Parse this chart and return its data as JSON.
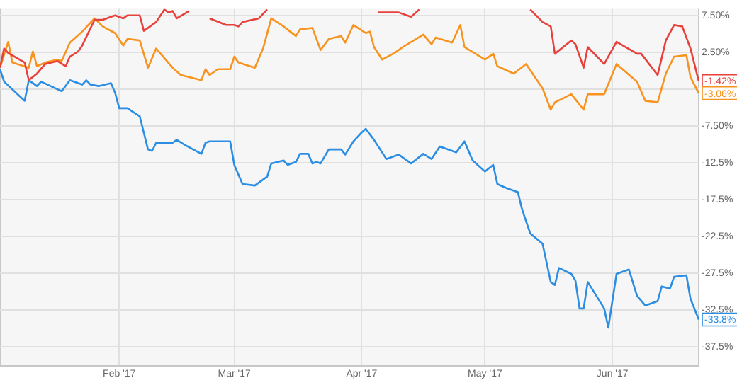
{
  "chart_data": {
    "type": "line",
    "xlim": [
      "2017-01-03",
      "2017-06-22"
    ],
    "xticks": [
      {
        "value": "2017-02-01",
        "label": "Feb '17"
      },
      {
        "value": "2017-03-01",
        "label": "Mar '17"
      },
      {
        "value": "2017-04-01",
        "label": "Apr '17"
      },
      {
        "value": "2017-05-01",
        "label": "May '17"
      },
      {
        "value": "2017-06-01",
        "label": "Jun '17"
      }
    ],
    "ylim": [
      -40,
      8.4
    ],
    "yticks": [
      {
        "value": 7.5,
        "label": "7.50%"
      },
      {
        "value": 2.5,
        "label": "2.50%"
      },
      {
        "value": -2.5,
        "label": null
      },
      {
        "value": -7.5,
        "label": "-7.50%"
      },
      {
        "value": -12.5,
        "label": "-12.5%"
      },
      {
        "value": -17.5,
        "label": "-17.5%"
      },
      {
        "value": -22.5,
        "label": "-22.5%"
      },
      {
        "value": -27.5,
        "label": "-27.5%"
      },
      {
        "value": -32.5,
        "label": "-32.5%"
      },
      {
        "value": -37.5,
        "label": "-37.5%"
      }
    ],
    "grid": true,
    "series": [
      {
        "color": "#e8413c",
        "x": [
          "2017-01-03",
          "2017-01-04",
          "2017-01-05",
          "2017-01-09",
          "2017-01-10",
          "2017-01-12",
          "2017-01-14",
          "2017-01-17",
          "2017-01-19",
          "2017-01-20",
          "2017-01-22",
          "2017-01-23",
          "2017-01-26",
          "2017-01-28",
          "2017-01-31",
          "2017-02-02",
          "2017-02-03",
          "2017-02-06",
          "2017-02-07",
          "2017-02-10",
          "2017-02-12",
          "2017-02-13",
          "2017-02-14",
          "2017-02-15",
          "2017-02-18",
          "2017-02-20",
          "2017-02-23",
          "2017-02-27",
          "2017-03-01",
          "2017-03-02",
          "2017-03-03",
          "2017-03-07",
          "2017-03-09",
          "2017-03-20",
          "2017-04-05",
          "2017-04-10",
          "2017-04-13",
          "2017-04-15",
          "2017-04-25",
          "2017-05-12",
          "2017-05-15",
          "2017-05-17",
          "2017-05-18",
          "2017-05-22",
          "2017-05-23",
          "2017-05-25",
          "2017-05-26",
          "2017-05-30",
          "2017-06-02",
          "2017-06-07",
          "2017-06-08",
          "2017-06-12",
          "2017-06-14",
          "2017-06-16",
          "2017-06-18",
          "2017-06-20",
          "2017-06-22"
        ],
        "values": [
          0.4,
          3.0,
          2.4,
          1.1,
          -1.3,
          -0.4,
          0.9,
          1.3,
          0.6,
          1.9,
          2.6,
          3.4,
          6.9,
          6.9,
          7.5,
          7.1,
          7.5,
          7.5,
          5.4,
          6.6,
          8.3,
          7.9,
          8.1,
          7.1,
          8.1,
          null,
          7.1,
          6.2,
          6.2,
          6.0,
          6.6,
          7.1,
          8.3,
          null,
          7.9,
          7.9,
          7.3,
          8.3,
          null,
          8.3,
          6.6,
          6.0,
          2.3,
          4.1,
          3.6,
          0.4,
          3.2,
          0.9,
          3.9,
          2.3,
          2.3,
          -0.6,
          4.1,
          6.2,
          6.0,
          3.0,
          -1.42
        ],
        "value_labels": [
          null,
          null,
          null,
          null,
          null,
          null,
          null,
          null,
          null,
          null,
          null,
          null,
          null,
          null,
          null,
          null,
          null,
          null,
          null,
          null,
          null,
          null,
          null,
          null,
          null,
          null,
          null,
          null,
          null,
          null,
          null,
          null,
          null,
          null,
          null,
          null,
          null,
          null,
          null,
          null,
          null,
          null,
          null,
          null,
          null,
          null,
          null,
          null,
          null,
          null,
          null,
          null,
          null,
          null,
          null,
          null,
          "-1.42%"
        ]
      },
      {
        "color": "#f7931e",
        "x": [
          "2017-01-03",
          "2017-01-05",
          "2017-01-06",
          "2017-01-10",
          "2017-01-11",
          "2017-01-12",
          "2017-01-14",
          "2017-01-17",
          "2017-01-18",
          "2017-01-20",
          "2017-01-23",
          "2017-01-26",
          "2017-01-28",
          "2017-01-31",
          "2017-02-02",
          "2017-02-03",
          "2017-02-06",
          "2017-02-08",
          "2017-02-10",
          "2017-02-12",
          "2017-02-14",
          "2017-02-16",
          "2017-02-21",
          "2017-02-22",
          "2017-02-23",
          "2017-02-25",
          "2017-02-28",
          "2017-03-01",
          "2017-03-02",
          "2017-03-06",
          "2017-03-08",
          "2017-03-10",
          "2017-03-13",
          "2017-03-16",
          "2017-03-17",
          "2017-03-20",
          "2017-03-22",
          "2017-03-24",
          "2017-03-27",
          "2017-03-28",
          "2017-03-30",
          "2017-04-02",
          "2017-04-03",
          "2017-04-04",
          "2017-04-06",
          "2017-04-09",
          "2017-04-11",
          "2017-04-16",
          "2017-04-18",
          "2017-04-19",
          "2017-04-23",
          "2017-04-25",
          "2017-04-26",
          "2017-05-01",
          "2017-05-03",
          "2017-05-04",
          "2017-05-08",
          "2017-05-11",
          "2017-05-15",
          "2017-05-17",
          "2017-05-18",
          "2017-05-22",
          "2017-05-25",
          "2017-05-26",
          "2017-05-30",
          "2017-06-02",
          "2017-06-07",
          "2017-06-09",
          "2017-06-12",
          "2017-06-14",
          "2017-06-16",
          "2017-06-19",
          "2017-06-20",
          "2017-06-22"
        ],
        "values": [
          0.4,
          3.9,
          1.1,
          0.4,
          2.6,
          0.6,
          1.1,
          1.5,
          1.3,
          3.8,
          5.3,
          7.1,
          6.0,
          5.1,
          3.4,
          4.3,
          4.1,
          0.4,
          3.0,
          1.7,
          0.4,
          -0.6,
          -1.3,
          0.2,
          -0.6,
          0.2,
          0.2,
          1.9,
          1.1,
          0.4,
          3.0,
          7.1,
          6.0,
          4.7,
          5.6,
          5.8,
          2.8,
          4.3,
          4.7,
          3.8,
          6.2,
          5.1,
          5.3,
          3.2,
          1.5,
          2.4,
          3.2,
          4.9,
          3.6,
          4.5,
          3.8,
          6.2,
          3.2,
          1.5,
          2.3,
          0.6,
          -0.4,
          0.9,
          -2.4,
          -5.3,
          -4.3,
          -3.2,
          -5.3,
          -3.2,
          -3.2,
          0.9,
          -1.5,
          -4.1,
          -4.3,
          -0.4,
          1.9,
          2.1,
          -0.9,
          -3.06
        ],
        "value_labels": [
          null,
          null,
          null,
          null,
          null,
          null,
          null,
          null,
          null,
          null,
          null,
          null,
          null,
          null,
          null,
          null,
          null,
          null,
          null,
          null,
          null,
          null,
          null,
          null,
          null,
          null,
          null,
          null,
          null,
          null,
          null,
          null,
          null,
          null,
          null,
          null,
          null,
          null,
          null,
          null,
          null,
          null,
          null,
          null,
          null,
          null,
          null,
          null,
          null,
          null,
          null,
          null,
          null,
          null,
          null,
          null,
          null,
          null,
          null,
          null,
          null,
          null,
          null,
          null,
          null,
          null,
          null,
          null,
          null,
          null,
          null,
          null,
          null,
          "-3.06%"
        ]
      },
      {
        "color": "#2b8de3",
        "x": [
          "2017-01-03",
          "2017-01-04",
          "2017-01-09",
          "2017-01-10",
          "2017-01-12",
          "2017-01-13",
          "2017-01-18",
          "2017-01-20",
          "2017-01-23",
          "2017-01-24",
          "2017-01-25",
          "2017-01-27",
          "2017-01-30",
          "2017-01-31",
          "2017-02-01",
          "2017-02-03",
          "2017-02-06",
          "2017-02-08",
          "2017-02-09",
          "2017-02-10",
          "2017-02-14",
          "2017-02-15",
          "2017-02-17",
          "2017-02-21",
          "2017-02-22",
          "2017-02-23",
          "2017-02-28",
          "2017-03-01",
          "2017-03-03",
          "2017-03-06",
          "2017-03-09",
          "2017-03-10",
          "2017-03-13",
          "2017-03-14",
          "2017-03-16",
          "2017-03-17",
          "2017-03-19",
          "2017-03-20",
          "2017-03-21",
          "2017-03-22",
          "2017-03-24",
          "2017-03-27",
          "2017-03-28",
          "2017-03-30",
          "2017-04-01",
          "2017-04-02",
          "2017-04-04",
          "2017-04-07",
          "2017-04-10",
          "2017-04-13",
          "2017-04-16",
          "2017-04-18",
          "2017-04-20",
          "2017-04-24",
          "2017-04-26",
          "2017-04-28",
          "2017-05-01",
          "2017-05-03",
          "2017-05-04",
          "2017-05-06",
          "2017-05-09",
          "2017-05-10",
          "2017-05-12",
          "2017-05-15",
          "2017-05-17",
          "2017-05-18",
          "2017-05-19",
          "2017-05-22",
          "2017-05-23",
          "2017-05-24",
          "2017-05-25",
          "2017-05-26",
          "2017-05-30",
          "2017-05-31",
          "2017-06-02",
          "2017-06-05",
          "2017-06-07",
          "2017-06-09",
          "2017-06-12",
          "2017-06-13",
          "2017-06-15",
          "2017-06-16",
          "2017-06-19",
          "2017-06-20",
          "2017-06-22"
        ],
        "values": [
          0.2,
          -1.5,
          -4.1,
          -1.3,
          -2.1,
          -1.5,
          -2.8,
          -1.3,
          -1.9,
          -1.3,
          -1.9,
          -2.1,
          -1.7,
          -3.0,
          -5.1,
          -5.1,
          -6.2,
          -10.7,
          -10.9,
          -9.8,
          -9.8,
          -9.4,
          -10.1,
          -11.3,
          -9.8,
          -9.6,
          -9.6,
          -12.8,
          -15.4,
          -15.6,
          -14.4,
          -12.6,
          -12.2,
          -12.8,
          -12.4,
          -11.3,
          -11.3,
          -12.6,
          -12.4,
          -12.6,
          -10.7,
          -10.7,
          -11.4,
          -9.6,
          -8.4,
          -7.9,
          -9.4,
          -12.0,
          -11.4,
          -12.6,
          -11.3,
          -12.0,
          -10.3,
          -11.1,
          -9.6,
          -12.2,
          -13.7,
          -12.8,
          -15.4,
          -15.9,
          -16.5,
          -18.8,
          -22.1,
          -23.5,
          -28.7,
          -29.1,
          -26.8,
          -27.6,
          -28.5,
          -32.3,
          -32.3,
          -28.7,
          -32.3,
          -34.9,
          -27.6,
          -27.0,
          -30.6,
          -31.9,
          -31.3,
          -29.3,
          -29.6,
          -28.0,
          -27.8,
          -31.0,
          -33.8
        ],
        "value_labels": [
          null,
          null,
          null,
          null,
          null,
          null,
          null,
          null,
          null,
          null,
          null,
          null,
          null,
          null,
          null,
          null,
          null,
          null,
          null,
          null,
          null,
          null,
          null,
          null,
          null,
          null,
          null,
          null,
          null,
          null,
          null,
          null,
          null,
          null,
          null,
          null,
          null,
          null,
          null,
          null,
          null,
          null,
          null,
          null,
          null,
          null,
          null,
          null,
          null,
          null,
          null,
          null,
          null,
          null,
          null,
          null,
          null,
          null,
          null,
          null,
          null,
          null,
          null,
          null,
          null,
          null,
          null,
          null,
          null,
          null,
          null,
          null,
          null,
          null,
          null,
          null,
          null,
          null,
          null,
          null,
          null,
          null,
          null,
          null,
          "-33.8%"
        ]
      }
    ]
  }
}
